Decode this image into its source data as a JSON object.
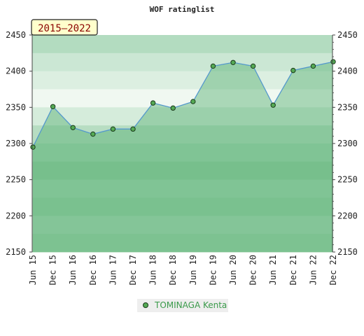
{
  "chart_data": {
    "type": "area",
    "title": "WOF ratinglist",
    "period_badge": "2015–2022",
    "categories": [
      "Jun 15",
      "Dec 15",
      "Jun 16",
      "Dec 16",
      "Jun 17",
      "Dec 17",
      "Jun 18",
      "Dec 18",
      "Jun 19",
      "Dec 19",
      "Jun 20",
      "Dec 20",
      "Jun 21",
      "Dec 21",
      "Jun 22",
      "Dec 22"
    ],
    "series": [
      {
        "name": "TOMINAGA Kenta",
        "values": [
          2295,
          2351,
          2322,
          2313,
          2320,
          2320,
          2356,
          2349,
          2358,
          2407,
          2412,
          2407,
          2353,
          2401,
          2407,
          2413
        ]
      }
    ],
    "ylim": [
      2150,
      2450
    ],
    "yticks": [
      2150,
      2200,
      2250,
      2300,
      2350,
      2400,
      2450
    ],
    "xlabel": "",
    "ylabel": "",
    "grid": true,
    "legend_position": "bottom",
    "colors": {
      "line": "#5599cc",
      "marker_fill": "#55aa55",
      "marker_stroke": "#1a3a1a",
      "area_fill": "#55b070",
      "band_light": "#f0f8f0",
      "band_dark": "#aad8b5",
      "badge_bg": "#ffffcc",
      "legend_bg": "#eeeeee"
    }
  }
}
